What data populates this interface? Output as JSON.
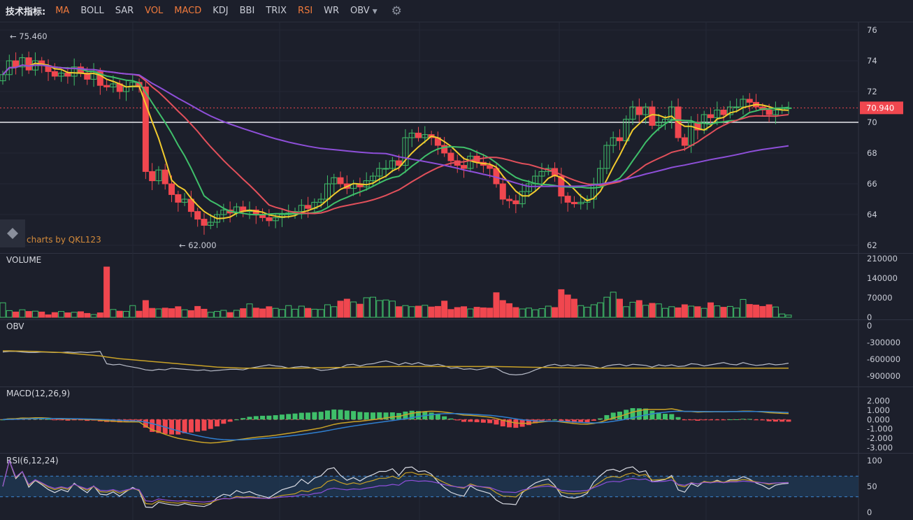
{
  "toolbar": {
    "label": "技术指标:",
    "items": [
      {
        "label": "MA",
        "active": true
      },
      {
        "label": "BOLL",
        "active": false
      },
      {
        "label": "SAR",
        "active": false
      },
      {
        "label": "VOL",
        "active": true
      },
      {
        "label": "MACD",
        "active": true
      },
      {
        "label": "KDJ",
        "active": false
      },
      {
        "label": "BBI",
        "active": false
      },
      {
        "label": "TRIX",
        "active": false
      },
      {
        "label": "RSI",
        "active": true
      },
      {
        "label": "WR",
        "active": false
      },
      {
        "label": "OBV",
        "active": false,
        "dropdown": true
      }
    ],
    "settings_icon": "gear-icon"
  },
  "watermark": {
    "text": "charts by QKL123",
    "icon": "qkl-logo-icon"
  },
  "colors": {
    "up": "#3fbf6a",
    "down": "#f0474f",
    "ma1": "#f2cb2e",
    "ma2": "#3fbf6a",
    "ma3": "#e2505b",
    "ma4": "#8e4fd9",
    "price_label": "#f0474f",
    "rsi_band": "#1f3a55",
    "text": "#c9ccd6",
    "grid": "#2a2e3b"
  },
  "chart_data": [
    {
      "type": "candlestick",
      "panel": "price",
      "y_ticks": [
        "76",
        "74",
        "72",
        "70",
        "68",
        "66",
        "64",
        "62"
      ],
      "ylim": [
        61.5,
        76.5
      ],
      "max_label": "75.460",
      "max_value": 75.46,
      "min_label": "62.000",
      "min_value": 62.0,
      "last_price_label": "70.940",
      "last_price": 70.94,
      "reference_line": 70.0,
      "closes": [
        73.1,
        74.0,
        73.6,
        74.2,
        73.4,
        74.0,
        73.7,
        73.3,
        73.0,
        73.2,
        73.0,
        73.6,
        73.2,
        72.8,
        73.3,
        72.4,
        72.3,
        72.5,
        72.0,
        72.3,
        72.6,
        72.3,
        66.8,
        66.2,
        66.9,
        66.0,
        65.3,
        64.8,
        65.0,
        64.2,
        63.7,
        63.3,
        63.5,
        64.0,
        64.3,
        64.1,
        64.5,
        64.2,
        64.3,
        64.0,
        63.8,
        63.6,
        63.8,
        64.0,
        64.1,
        64.2,
        64.6,
        64.4,
        64.8,
        65.0,
        66.0,
        66.4,
        66.0,
        65.7,
        66.0,
        65.8,
        66.2,
        66.5,
        67.0,
        67.0,
        67.5,
        67.2,
        69.0,
        69.3,
        69.0,
        69.2,
        69.0,
        68.5,
        68.0,
        67.5,
        67.2,
        67.0,
        67.8,
        67.4,
        67.2,
        67.0,
        66.0,
        65.0,
        64.9,
        64.7,
        65.5,
        66.0,
        66.5,
        66.8,
        67.0,
        66.5,
        65.2,
        64.8,
        64.7,
        64.8,
        65.0,
        66.0,
        67.0,
        68.5,
        69.0,
        68.8,
        70.2,
        71.0,
        70.5,
        71.0,
        69.8,
        70.0,
        70.2,
        71.0,
        69.0,
        68.5,
        70.0,
        69.5,
        70.5,
        70.3,
        70.8,
        70.5,
        71.0,
        71.0,
        71.5,
        71.3,
        71.0,
        70.8,
        70.5,
        70.8,
        70.9,
        70.94
      ],
      "volumes": [
        52000,
        24000,
        19000,
        27000,
        21000,
        22000,
        19000,
        9000,
        17000,
        21000,
        16000,
        18000,
        20000,
        14000,
        10000,
        16000,
        180000,
        28000,
        22000,
        21000,
        42000,
        22000,
        60000,
        32000,
        30000,
        33000,
        31000,
        38000,
        27000,
        24000,
        39000,
        29000,
        18000,
        21000,
        25000,
        17000,
        25000,
        31000,
        48000,
        33000,
        30000,
        38000,
        32000,
        28000,
        42000,
        29000,
        40000,
        32000,
        29000,
        28000,
        45000,
        38000,
        58000,
        65000,
        55000,
        47000,
        70000,
        72000,
        60000,
        62000,
        58000,
        38000,
        42000,
        38000,
        40000,
        43000,
        37000,
        39000,
        58000,
        28000,
        35000,
        38000,
        30000,
        36000,
        34000,
        33000,
        88000,
        60000,
        49000,
        35000,
        30000,
        33000,
        27000,
        31000,
        40000,
        35000,
        99000,
        80000,
        65000,
        42000,
        36000,
        45000,
        52000,
        72000,
        90000,
        65000,
        38000,
        54000,
        60000,
        43000,
        50000,
        48000,
        32000,
        38000,
        34000,
        45000,
        40000,
        38000,
        32000,
        52000,
        41000,
        36000,
        39000,
        33000,
        64000,
        46000,
        44000,
        39000,
        45000,
        37000,
        12000,
        8000
      ]
    },
    {
      "type": "bar",
      "panel": "volume",
      "title": "VOLUME",
      "y_ticks": [
        "210000",
        "140000",
        "70000",
        "0"
      ],
      "ylim": [
        0,
        210000
      ]
    },
    {
      "type": "line",
      "panel": "obv",
      "title": "OBV",
      "y_ticks": [
        "0",
        "-300000",
        "-600000",
        "-900000"
      ],
      "ylim": [
        -1000000,
        0
      ],
      "values": [
        -470000,
        -460000,
        -460000,
        -470000,
        -480000,
        -480000,
        -470000,
        -475000,
        -480000,
        -480000,
        -470000,
        -480000,
        -470000,
        -480000,
        -470000,
        -460000,
        -680000,
        -700000,
        -690000,
        -720000,
        -740000,
        -760000,
        -790000,
        -800000,
        -780000,
        -790000,
        -760000,
        -770000,
        -780000,
        -790000,
        -800000,
        -790000,
        -810000,
        -800000,
        -790000,
        -780000,
        -780000,
        -790000,
        -760000,
        -740000,
        -720000,
        -700000,
        -720000,
        -730000,
        -760000,
        -740000,
        -730000,
        -740000,
        -770000,
        -800000,
        -790000,
        -770000,
        -750000,
        -700000,
        -690000,
        -720000,
        -690000,
        -680000,
        -650000,
        -630000,
        -660000,
        -700000,
        -660000,
        -690000,
        -660000,
        -700000,
        -710000,
        -690000,
        -720000,
        -760000,
        -750000,
        -780000,
        -770000,
        -790000,
        -770000,
        -740000,
        -760000,
        -830000,
        -870000,
        -880000,
        -870000,
        -840000,
        -790000,
        -750000,
        -710000,
        -690000,
        -720000,
        -700000,
        -720000,
        -700000,
        -710000,
        -730000,
        -760000,
        -720000,
        -700000,
        -690000,
        -720000,
        -690000,
        -700000,
        -710000,
        -740000,
        -700000,
        -720000,
        -700000,
        -730000,
        -720000,
        -680000,
        -690000,
        -720000,
        -700000,
        -680000,
        -660000,
        -690000,
        -700000,
        -660000,
        -690000,
        -710000,
        -700000,
        -680000,
        -700000,
        -690000,
        -670000
      ],
      "signal": [
        -450000,
        -450000,
        -452000,
        -455000,
        -458000,
        -460000,
        -465000,
        -470000,
        -475000,
        -480000,
        -490000,
        -500000,
        -510000,
        -520000,
        -530000,
        -540000,
        -560000,
        -575000,
        -590000,
        -600000,
        -610000,
        -620000,
        -630000,
        -640000,
        -650000,
        -660000,
        -670000,
        -680000,
        -690000,
        -700000,
        -710000,
        -720000,
        -730000,
        -740000,
        -745000,
        -750000,
        -755000,
        -760000,
        -760000,
        -760000,
        -760000,
        -760000,
        -760000,
        -760000,
        -760000,
        -760000,
        -758000,
        -756000,
        -754000,
        -752000,
        -750000,
        -748000,
        -746000,
        -744000,
        -742000,
        -740000,
        -738000,
        -736000,
        -734000,
        -732000,
        -730000,
        -730000,
        -730000,
        -730000,
        -730000,
        -730000,
        -730000,
        -730000,
        -730000,
        -730000,
        -730000,
        -730000,
        -730000,
        -730000,
        -730000,
        -730000,
        -730000,
        -732000,
        -735000,
        -738000,
        -740000,
        -742000,
        -744000,
        -746000,
        -748000,
        -750000,
        -752000,
        -754000,
        -756000,
        -758000,
        -760000,
        -760000,
        -760000,
        -760000,
        -760000,
        -760000,
        -760000,
        -760000,
        -760000,
        -760000,
        -760000,
        -760000,
        -760000,
        -760000,
        -760000,
        -760000,
        -760000,
        -760000,
        -760000,
        -760000,
        -760000,
        -760000,
        -760000,
        -760000,
        -760000,
        -760000,
        -760000,
        -760000,
        -760000,
        -760000,
        -760000,
        -760000
      ]
    },
    {
      "type": "line",
      "panel": "macd",
      "title": "MACD(12,26,9)",
      "y_ticks": [
        "2.000",
        "1.000",
        "0.000",
        "-1.000",
        "-2.000",
        "-3.000"
      ],
      "ylim": [
        -3.4,
        2.4
      ]
    },
    {
      "type": "line",
      "panel": "rsi",
      "title": "RSI(6,12,24)",
      "y_ticks": [
        "100",
        "50",
        "0"
      ],
      "ylim": [
        0,
        100
      ],
      "band": [
        30,
        70
      ]
    }
  ]
}
